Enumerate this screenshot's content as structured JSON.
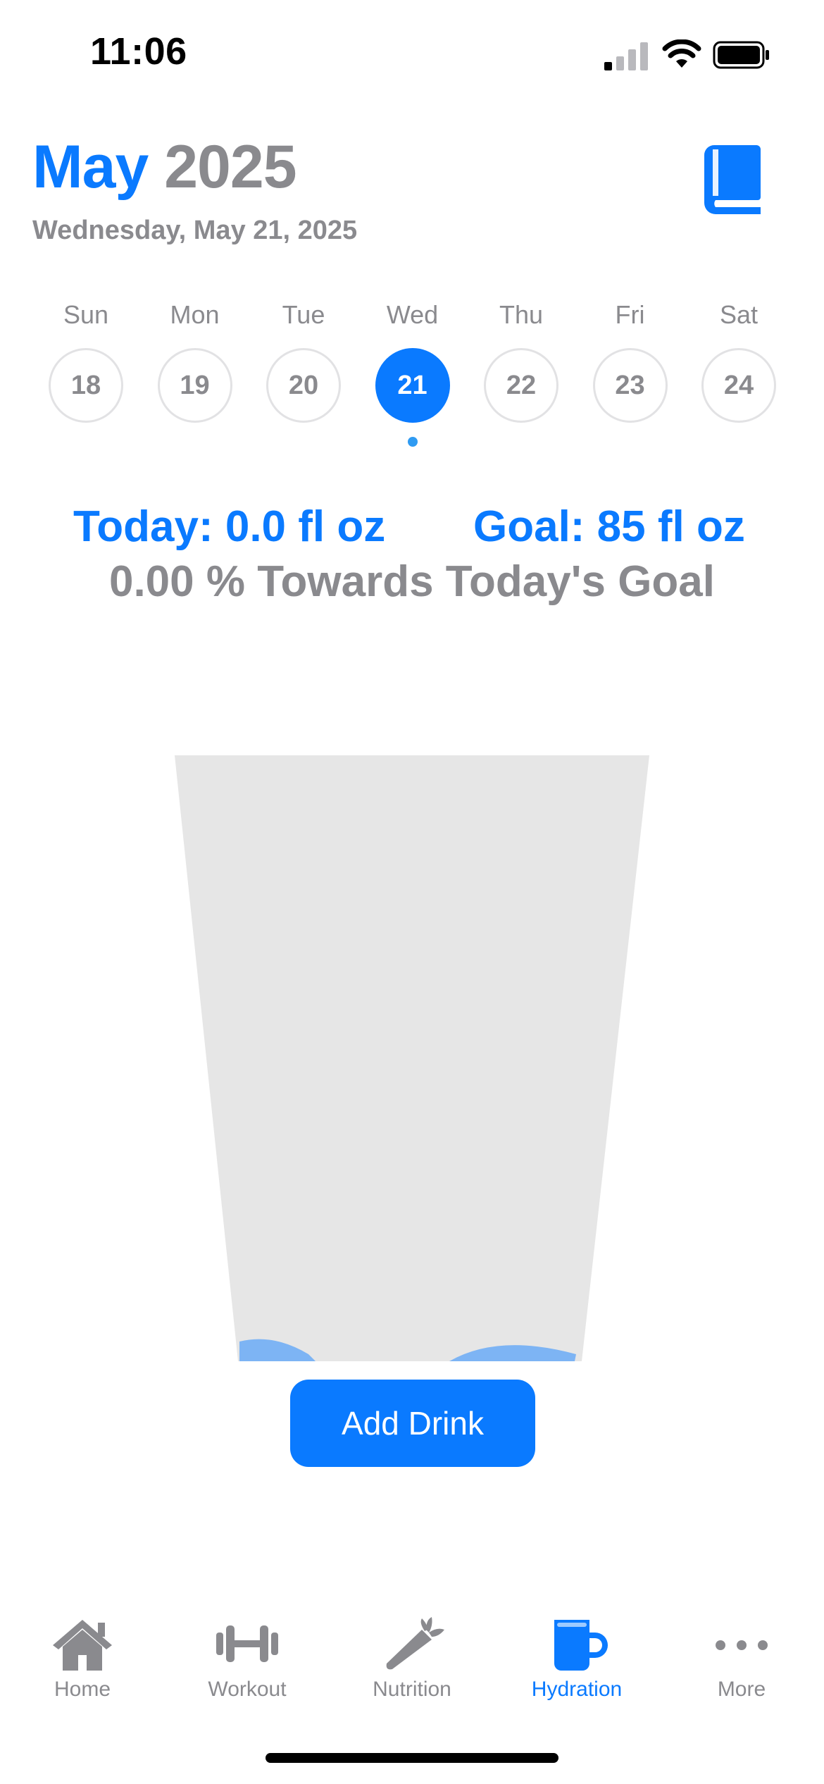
{
  "status_bar": {
    "time": "11:06"
  },
  "header": {
    "month": "May",
    "year": "2025",
    "full_date": "Wednesday, May 21, 2025",
    "journal_icon": "book-icon"
  },
  "week": [
    {
      "name": "Sun",
      "date": "18",
      "selected": false
    },
    {
      "name": "Mon",
      "date": "19",
      "selected": false
    },
    {
      "name": "Tue",
      "date": "20",
      "selected": false
    },
    {
      "name": "Wed",
      "date": "21",
      "selected": true
    },
    {
      "name": "Thu",
      "date": "22",
      "selected": false
    },
    {
      "name": "Fri",
      "date": "23",
      "selected": false
    },
    {
      "name": "Sat",
      "date": "24",
      "selected": false
    }
  ],
  "hydration": {
    "today_label": "Today: 0.0 fl oz",
    "goal_label": "Goal: 85 fl oz",
    "progress_label": "0.00 % Towards Today's Goal",
    "progress_percent": 0
  },
  "actions": {
    "add_drink": "Add Drink"
  },
  "tabs": [
    {
      "label": "Home",
      "icon": "house-icon",
      "active": false
    },
    {
      "label": "Workout",
      "icon": "dumbbell-icon",
      "active": false
    },
    {
      "label": "Nutrition",
      "icon": "carrot-icon",
      "active": false
    },
    {
      "label": "Hydration",
      "icon": "mug-icon",
      "active": true
    },
    {
      "label": "More",
      "icon": "ellipsis-icon",
      "active": false
    }
  ],
  "colors": {
    "accent": "#0a7aff",
    "secondary_text": "#8a8a8e",
    "glass": "#e6e6e6",
    "water": "#7db4f4"
  }
}
